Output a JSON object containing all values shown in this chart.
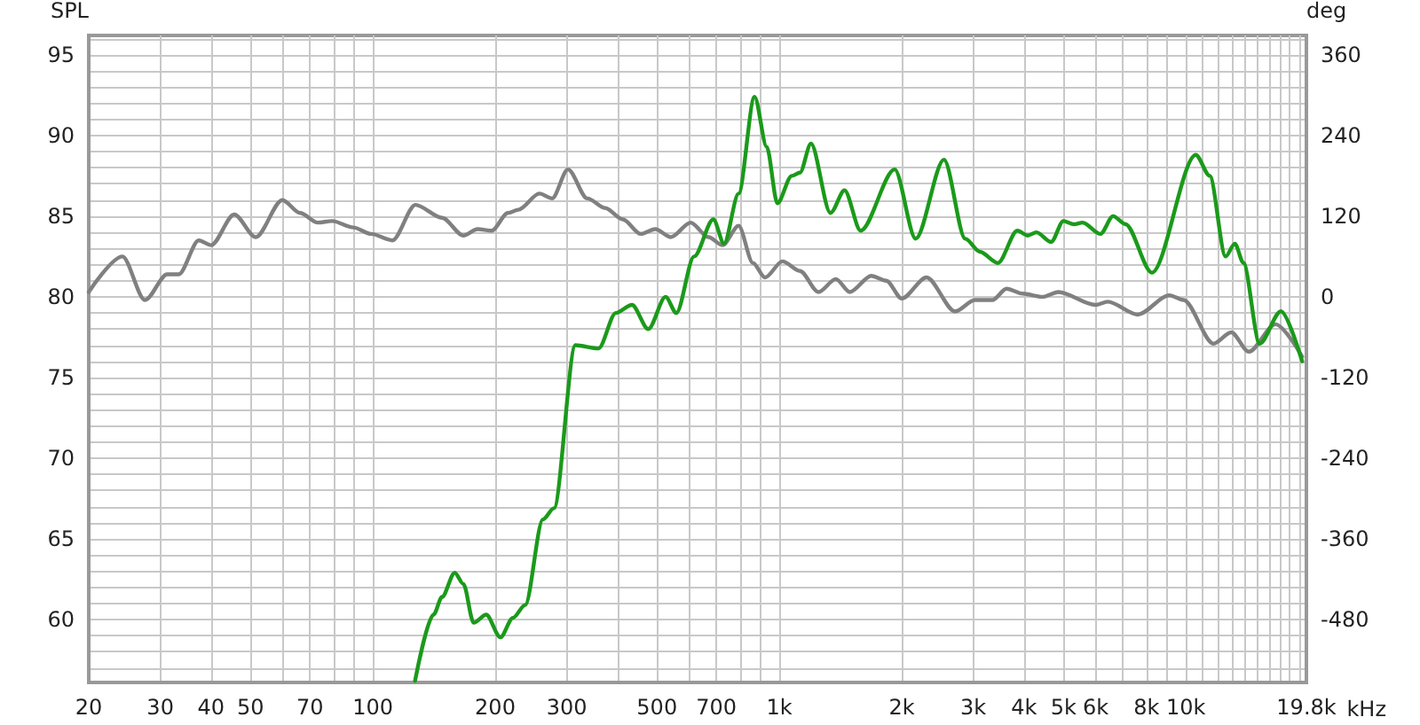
{
  "chart_data": {
    "type": "line",
    "ylabel": "SPL",
    "y2label": "deg",
    "log": "x",
    "grid": true,
    "marker": "none",
    "line_style": "solid",
    "xlim": [
      20,
      19800
    ],
    "xticks": [
      20,
      30,
      40,
      50,
      {
        "value": 60,
        "label": null
      },
      70,
      {
        "value": 80,
        "label": null
      },
      {
        "value": 90,
        "label": null
      },
      100,
      200,
      300,
      {
        "value": 400,
        "label": null
      },
      500,
      {
        "value": 600,
        "label": null
      },
      700,
      {
        "value": 800,
        "label": null
      },
      {
        "value": 900,
        "label": null
      },
      {
        "value": 1000,
        "label": "1k"
      },
      {
        "value": 2000,
        "label": "2k"
      },
      {
        "value": 3000,
        "label": "3k"
      },
      {
        "value": 4000,
        "label": "4k"
      },
      {
        "value": 5000,
        "label": "5k"
      },
      {
        "value": 6000,
        "label": "6k"
      },
      {
        "value": 7000,
        "label": null
      },
      {
        "value": 8000,
        "label": "8k"
      },
      {
        "value": 9000,
        "label": null
      },
      {
        "value": 10000,
        "label": "10k"
      },
      {
        "value": 11000,
        "label": null
      },
      {
        "value": 12000,
        "label": null
      },
      {
        "value": 13000,
        "label": null
      },
      {
        "value": 14000,
        "label": null
      },
      {
        "value": 15000,
        "label": null
      },
      {
        "value": 16000,
        "label": null
      },
      {
        "value": 17000,
        "label": null
      },
      {
        "value": 18000,
        "label": null
      },
      {
        "value": 19000,
        "label": null
      },
      {
        "value": 19800,
        "label": "19.8k"
      }
    ],
    "xlabel": "kHz",
    "ylim": [
      56.1,
      96.2
    ],
    "yticks": [
      {
        "value": 57,
        "label": null
      },
      {
        "value": 58,
        "label": null
      },
      {
        "value": 59,
        "label": null
      },
      60,
      {
        "value": 61,
        "label": null
      },
      {
        "value": 62,
        "label": null
      },
      {
        "value": 63,
        "label": null
      },
      {
        "value": 64,
        "label": null
      },
      65,
      {
        "value": 66,
        "label": null
      },
      {
        "value": 67,
        "label": null
      },
      {
        "value": 68,
        "label": null
      },
      {
        "value": 69,
        "label": null
      },
      70,
      {
        "value": 71,
        "label": null
      },
      {
        "value": 72,
        "label": null
      },
      {
        "value": 73,
        "label": null
      },
      {
        "value": 74,
        "label": null
      },
      75,
      {
        "value": 76,
        "label": null
      },
      {
        "value": 77,
        "label": null
      },
      {
        "value": 78,
        "label": null
      },
      {
        "value": 79,
        "label": null
      },
      80,
      {
        "value": 81,
        "label": null
      },
      {
        "value": 82,
        "label": null
      },
      {
        "value": 83,
        "label": null
      },
      {
        "value": 84,
        "label": null
      },
      85,
      {
        "value": 86,
        "label": null
      },
      {
        "value": 87,
        "label": null
      },
      {
        "value": 88,
        "label": null
      },
      {
        "value": 89,
        "label": null
      },
      90,
      {
        "value": 91,
        "label": null
      },
      {
        "value": 92,
        "label": null
      },
      {
        "value": 93,
        "label": null
      },
      {
        "value": 94,
        "label": null
      },
      95,
      {
        "value": 96,
        "label": null
      }
    ],
    "y2lim": [
      -574,
      389
    ],
    "y2ticks": [
      -480,
      -360,
      -240,
      -120,
      0,
      120,
      240,
      360
    ],
    "series": [
      {
        "color": "#808080",
        "x": [
          20,
          24.2,
          27.5,
          31.2,
          33.3,
          37.3,
          40,
          45.6,
          51.5,
          59.9,
          66.2,
          73.2,
          79.4,
          89.5,
          99,
          111.7,
          127.3,
          148,
          167,
          181,
          196,
          215,
          228,
          257,
          276,
          302,
          337,
          373,
          412,
          456,
          495,
          541,
          605,
          669,
          725,
          794,
          861,
          922,
          1018,
          1124,
          1248,
          1377,
          1491,
          1684,
          1833,
          2000,
          2302,
          2706,
          3028,
          3342,
          3623,
          3966,
          4437,
          4858,
          5994,
          6426,
          7613,
          9111,
          9874,
          11700,
          12930,
          14290,
          16620,
          19330
        ],
        "values": [
          80.3,
          82.5,
          79.8,
          81.4,
          81.4,
          83.5,
          83.2,
          85.1,
          83.7,
          86.0,
          85.2,
          84.6,
          84.7,
          84.3,
          83.9,
          83.5,
          85.7,
          84.9,
          83.8,
          84.2,
          84.1,
          85.2,
          85.4,
          86.4,
          86.1,
          87.9,
          86.1,
          85.5,
          84.8,
          83.9,
          84.2,
          83.7,
          84.6,
          83.7,
          83.2,
          84.4,
          82.1,
          81.2,
          82.2,
          81.6,
          80.3,
          81.1,
          80.3,
          81.3,
          81.0,
          79.9,
          81.2,
          79.1,
          79.8,
          79.8,
          80.5,
          80.2,
          80.0,
          80.3,
          79.5,
          79.7,
          78.9,
          80.1,
          79.8,
          77.1,
          77.8,
          76.6,
          78.3,
          76.3
        ]
      },
      {
        "color": "#1a9a1a",
        "x": [
          127,
          141,
          148,
          159,
          167,
          177,
          190,
          206,
          221,
          237,
          262,
          279,
          315,
          359,
          396,
          434,
          476,
          525,
          558,
          617,
          688,
          731,
          794,
          869,
          931,
          989,
          1073,
          1124,
          1196,
          1336,
          1447,
          1585,
          1922,
          2165,
          2541,
          2868,
          3112,
          3449,
          3850,
          4085,
          4291,
          4664,
          4999,
          5305,
          5575,
          6165,
          6624,
          7108,
          8253,
          10580,
          11450,
          12530,
          13200,
          13860,
          15190,
          17140,
          19330
        ],
        "values": [
          56.2,
          60.3,
          61.4,
          62.9,
          62.2,
          59.8,
          60.3,
          58.9,
          60.1,
          60.9,
          66.2,
          66.9,
          77.0,
          76.8,
          79.0,
          79.5,
          78.0,
          80.0,
          79.0,
          82.5,
          84.8,
          83.3,
          86.4,
          92.4,
          89.3,
          85.8,
          87.5,
          87.7,
          89.5,
          85.2,
          86.6,
          84.1,
          87.9,
          83.6,
          88.5,
          83.6,
          82.8,
          82.1,
          84.1,
          83.8,
          84.0,
          83.4,
          84.7,
          84.5,
          84.6,
          83.9,
          85.0,
          84.5,
          81.5,
          88.8,
          87.5,
          82.5,
          83.3,
          82.1,
          77.1,
          79.1,
          76.0
        ]
      }
    ]
  }
}
